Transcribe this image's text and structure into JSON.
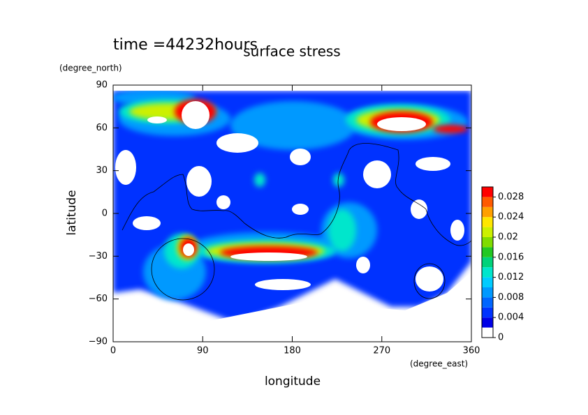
{
  "chart_data": {
    "type": "contour",
    "title": "surface stress",
    "annotation": "time =44232hours",
    "xlabel": "longitude",
    "ylabel": "latitude",
    "x_unit": "(degree_east)",
    "y_unit": "(degree_north)",
    "xlim": [
      0,
      360
    ],
    "ylim": [
      -90,
      90
    ],
    "xticks": [
      0,
      90,
      180,
      270,
      360
    ],
    "yticks": [
      {
        "value": -90,
        "label": "−90"
      },
      {
        "value": -60,
        "label": "−60"
      },
      {
        "value": -30,
        "label": "−30"
      },
      0,
      30,
      60,
      90
    ],
    "colorbar": {
      "lim": [
        0,
        0.03
      ],
      "ticks": [
        0,
        0.004,
        0.008,
        0.012,
        0.016,
        0.02,
        0.024,
        0.028
      ],
      "colors": [
        "#ffffff",
        "#0000e6",
        "#0033ff",
        "#0066ff",
        "#0099ff",
        "#00ccff",
        "#00e6cc",
        "#00d27a",
        "#22c822",
        "#80dc00",
        "#ccf000",
        "#ffe600",
        "#ffa000",
        "#ff5a00",
        "#ff0000"
      ]
    }
  }
}
